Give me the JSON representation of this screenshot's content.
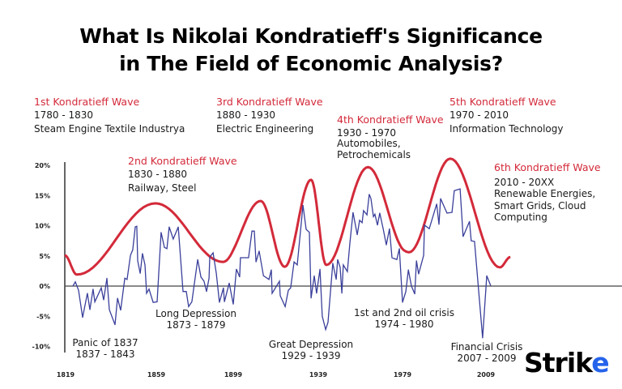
{
  "title": {
    "line1": "What Is Nikolai Kondratieff's Significance",
    "line2": "in The Field of Economic Analysis?"
  },
  "waves": [
    {
      "title": "1st Kondratieff  Wave",
      "years": "1780 - 1830",
      "desc": [
        "Steam Engine Textile Industrya"
      ]
    },
    {
      "title": "2nd Kondratieff  Wave",
      "years": "1830 - 1880",
      "desc": [
        "Railway, Steel"
      ]
    },
    {
      "title": "3rd Kondratieff  Wave",
      "years": "1880 - 1930",
      "desc": [
        "Electric Engineering"
      ]
    },
    {
      "title": "4th Kondratieff  Wave",
      "years": "1930 - 1970",
      "desc": [
        "Automobiles,",
        "Petrochemicals"
      ]
    },
    {
      "title": "5th Kondratieff  Wave",
      "years": "1970 - 2010",
      "desc": [
        "Information Technology"
      ]
    },
    {
      "title": "6th Kondratieff  Wave",
      "years": "2010 - 20XX",
      "desc": [
        "Renewable Energies,",
        "Smart Grids, Cloud",
        "Computing"
      ]
    }
  ],
  "annotations": [
    {
      "name": "Panic of 1837",
      "years": "1837 - 1843"
    },
    {
      "name": "Long Depression",
      "years": "1873 - 1879"
    },
    {
      "name": "Great Depression",
      "years": "1929 - 1939"
    },
    {
      "name": "1st and 2nd oil crisis",
      "years": "1974 - 1980"
    },
    {
      "name": "Financial Crisis",
      "years": "2007 - 2009"
    }
  ],
  "logo": {
    "text": "Strike",
    "accent_color": "#2563eb"
  },
  "chart_data": {
    "type": "line",
    "xlabel": "",
    "ylabel": "",
    "x_ticks": [
      "1819",
      "1859",
      "1899",
      "1939",
      "1979",
      "2009"
    ],
    "y_ticks": [
      "20%",
      "15%",
      "10%",
      "5%",
      "0%",
      "-5%",
      "-10%"
    ],
    "ylim": [
      -10,
      20
    ],
    "grid": false,
    "series": [
      {
        "color": "#d32a3a",
        "style": "smooth wave envelope",
        "points": [
          [
            1818.6,
            5.1
          ],
          [
            1824,
            1.9
          ],
          [
            1858.6,
            13.7
          ],
          [
            1893.7,
            4.0
          ],
          [
            1911.9,
            14.1
          ],
          [
            1923.2,
            3.2
          ],
          [
            1935.6,
            17.6
          ],
          [
            1942.8,
            3.5
          ],
          [
            1962.6,
            19.7
          ],
          [
            1981.3,
            5.6
          ],
          [
            1996.2,
            21.1
          ],
          [
            2014.0,
            3.1
          ],
          [
            2017.8,
            4.8
          ]
        ]
      },
      {
        "color": "#3a3f9a",
        "points": [
          [
            1822.2,
            0
          ],
          [
            1823.3,
            0.7
          ],
          [
            1824.7,
            -0.7
          ],
          [
            1826.5,
            -5.2
          ],
          [
            1828.6,
            -1.2
          ],
          [
            1829.7,
            -3.9
          ],
          [
            1831.1,
            -0.5
          ],
          [
            1831.9,
            -2.6
          ],
          [
            1834.7,
            -0.3
          ],
          [
            1835.8,
            -2.3
          ],
          [
            1837.2,
            1.3
          ],
          [
            1838.3,
            -3.9
          ],
          [
            1840.8,
            -6.4
          ],
          [
            1841.9,
            -2.0
          ],
          [
            1843.3,
            -4.0
          ],
          [
            1845.1,
            1.3
          ],
          [
            1846.1,
            1.1
          ],
          [
            1847.6,
            5.1
          ],
          [
            1848.6,
            6.0
          ],
          [
            1849.7,
            9.8
          ],
          [
            1850.4,
            9.9
          ],
          [
            1850.8,
            4.2
          ],
          [
            1851.9,
            2.1
          ],
          [
            1852.9,
            5.4
          ],
          [
            1854.0,
            3.5
          ],
          [
            1854.7,
            -1.2
          ],
          [
            1855.8,
            -0.5
          ],
          [
            1857.6,
            -2.7
          ],
          [
            1859.4,
            -2.6
          ],
          [
            1861.5,
            8.9
          ],
          [
            1863.2,
            6.4
          ],
          [
            1864.5,
            6.2
          ],
          [
            1865.7,
            9.8
          ],
          [
            1867.8,
            7.8
          ],
          [
            1870.4,
            9.8
          ],
          [
            1872.9,
            -0.9
          ],
          [
            1874.6,
            -0.9
          ],
          [
            1875.8,
            -3.4
          ],
          [
            1877.5,
            -2.6
          ],
          [
            1880.5,
            4.4
          ],
          [
            1882.2,
            1.5
          ],
          [
            1883.8,
            0.8
          ],
          [
            1885.1,
            -0.9
          ],
          [
            1886.4,
            1.3
          ],
          [
            1886.8,
            4.8
          ],
          [
            1888.5,
            5.5
          ],
          [
            1890.2,
            2.1
          ],
          [
            1891.8,
            -2.7
          ],
          [
            1893.9,
            -0.3
          ],
          [
            1894.4,
            -2.6
          ],
          [
            1896.9,
            0.5
          ],
          [
            1899.0,
            -3.0
          ],
          [
            1900.5,
            2.8
          ],
          [
            1902.0,
            1.5
          ],
          [
            1902.4,
            4.7
          ],
          [
            1906.2,
            4.7
          ],
          [
            1907.8,
            9.1
          ],
          [
            1908.9,
            9.1
          ],
          [
            1909.7,
            4.0
          ],
          [
            1911.2,
            5.8
          ],
          [
            1913.2,
            1.7
          ],
          [
            1915.8,
            1.1
          ],
          [
            1916.9,
            2.7
          ],
          [
            1917.3,
            -1.2
          ],
          [
            1920.7,
            0.8
          ],
          [
            1921.1,
            -1.6
          ],
          [
            1923.4,
            -3.4
          ],
          [
            1924.9,
            -0.7
          ],
          [
            1926.0,
            -0.3
          ],
          [
            1927.6,
            4.0
          ],
          [
            1929.1,
            3.5
          ],
          [
            1931.8,
            13.4
          ],
          [
            1933.3,
            9.4
          ],
          [
            1934.8,
            8.9
          ],
          [
            1935.6,
            -2.0
          ],
          [
            1937.1,
            1.7
          ],
          [
            1938.2,
            -1.2
          ],
          [
            1939.8,
            2.8
          ],
          [
            1940.9,
            -5.0
          ],
          [
            1942.5,
            -7.2
          ],
          [
            1943.6,
            -6.0
          ],
          [
            1945.9,
            3.8
          ],
          [
            1947.5,
            1.1
          ],
          [
            1948.2,
            4.4
          ],
          [
            1949.4,
            3.1
          ],
          [
            1950.2,
            -1.2
          ],
          [
            1950.9,
            3.5
          ],
          [
            1952.8,
            2.4
          ],
          [
            1954.0,
            7.1
          ],
          [
            1955.5,
            12.2
          ],
          [
            1957.5,
            8.5
          ],
          [
            1958.6,
            10.9
          ],
          [
            1959.8,
            10.5
          ],
          [
            1960.5,
            12.5
          ],
          [
            1962.1,
            11.8
          ],
          [
            1963.2,
            15.2
          ],
          [
            1964.0,
            14.5
          ],
          [
            1965.2,
            11.5
          ],
          [
            1965.9,
            11.9
          ],
          [
            1967.1,
            10.1
          ],
          [
            1968.2,
            12.1
          ],
          [
            1969.8,
            9.5
          ],
          [
            1971.3,
            6.8
          ],
          [
            1972.8,
            9.5
          ],
          [
            1974.0,
            4.7
          ],
          [
            1976.3,
            4.4
          ],
          [
            1977.5,
            6.2
          ],
          [
            1979.0,
            -2.7
          ],
          [
            1980.2,
            -0.9
          ],
          [
            1981.1,
            2.7
          ],
          [
            1982.2,
            0
          ],
          [
            1983.4,
            -1.3
          ],
          [
            1984.0,
            4.2
          ],
          [
            1984.8,
            2.0
          ],
          [
            1986.6,
            5.1
          ],
          [
            1986.9,
            10.1
          ],
          [
            1988.6,
            9.5
          ],
          [
            1991.3,
            13.6
          ],
          [
            1992.1,
            10.2
          ],
          [
            1992.7,
            14.5
          ],
          [
            1995.0,
            12.1
          ],
          [
            1996.8,
            12.2
          ],
          [
            1997.6,
            15.8
          ],
          [
            1999.7,
            16.1
          ],
          [
            2000.8,
            8.2
          ],
          [
            2003.1,
            10.7
          ],
          [
            2003.7,
            7.5
          ],
          [
            2004.9,
            7.4
          ],
          [
            2007.8,
            -8.6
          ],
          [
            2009.3,
            1.7
          ],
          [
            2010.7,
            0.1
          ]
        ]
      }
    ]
  }
}
